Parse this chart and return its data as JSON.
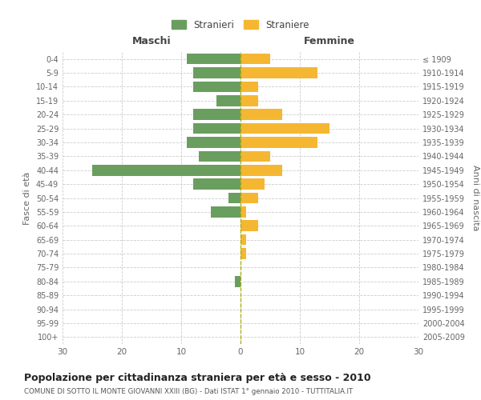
{
  "age_groups": [
    "0-4",
    "5-9",
    "10-14",
    "15-19",
    "20-24",
    "25-29",
    "30-34",
    "35-39",
    "40-44",
    "45-49",
    "50-54",
    "55-59",
    "60-64",
    "65-69",
    "70-74",
    "75-79",
    "80-84",
    "85-89",
    "90-94",
    "95-99",
    "100+"
  ],
  "birth_years": [
    "2005-2009",
    "2000-2004",
    "1995-1999",
    "1990-1994",
    "1985-1989",
    "1980-1984",
    "1975-1979",
    "1970-1974",
    "1965-1969",
    "1960-1964",
    "1955-1959",
    "1950-1954",
    "1945-1949",
    "1940-1944",
    "1935-1939",
    "1930-1934",
    "1925-1929",
    "1920-1924",
    "1915-1919",
    "1910-1914",
    "≤ 1909"
  ],
  "males": [
    9,
    8,
    8,
    4,
    8,
    8,
    9,
    7,
    25,
    8,
    2,
    5,
    0,
    0,
    0,
    0,
    1,
    0,
    0,
    0,
    0
  ],
  "females": [
    5,
    13,
    3,
    3,
    7,
    15,
    13,
    5,
    7,
    4,
    3,
    1,
    3,
    1,
    1,
    0,
    0,
    0,
    0,
    0,
    0
  ],
  "male_color": "#6a9e5f",
  "female_color": "#f5b731",
  "grid_color": "#cccccc",
  "title": "Popolazione per cittadinanza straniera per età e sesso - 2010",
  "subtitle": "COMUNE DI SOTTO IL MONTE GIOVANNI XXIII (BG) - Dati ISTAT 1° gennaio 2010 - TUTTITALIA.IT",
  "xlabel_left": "Maschi",
  "xlabel_right": "Femmine",
  "ylabel_left": "Fasce di età",
  "ylabel_right": "Anni di nascita",
  "legend_male": "Stranieri",
  "legend_female": "Straniere",
  "xlim": 30,
  "bg_color": "#ffffff"
}
